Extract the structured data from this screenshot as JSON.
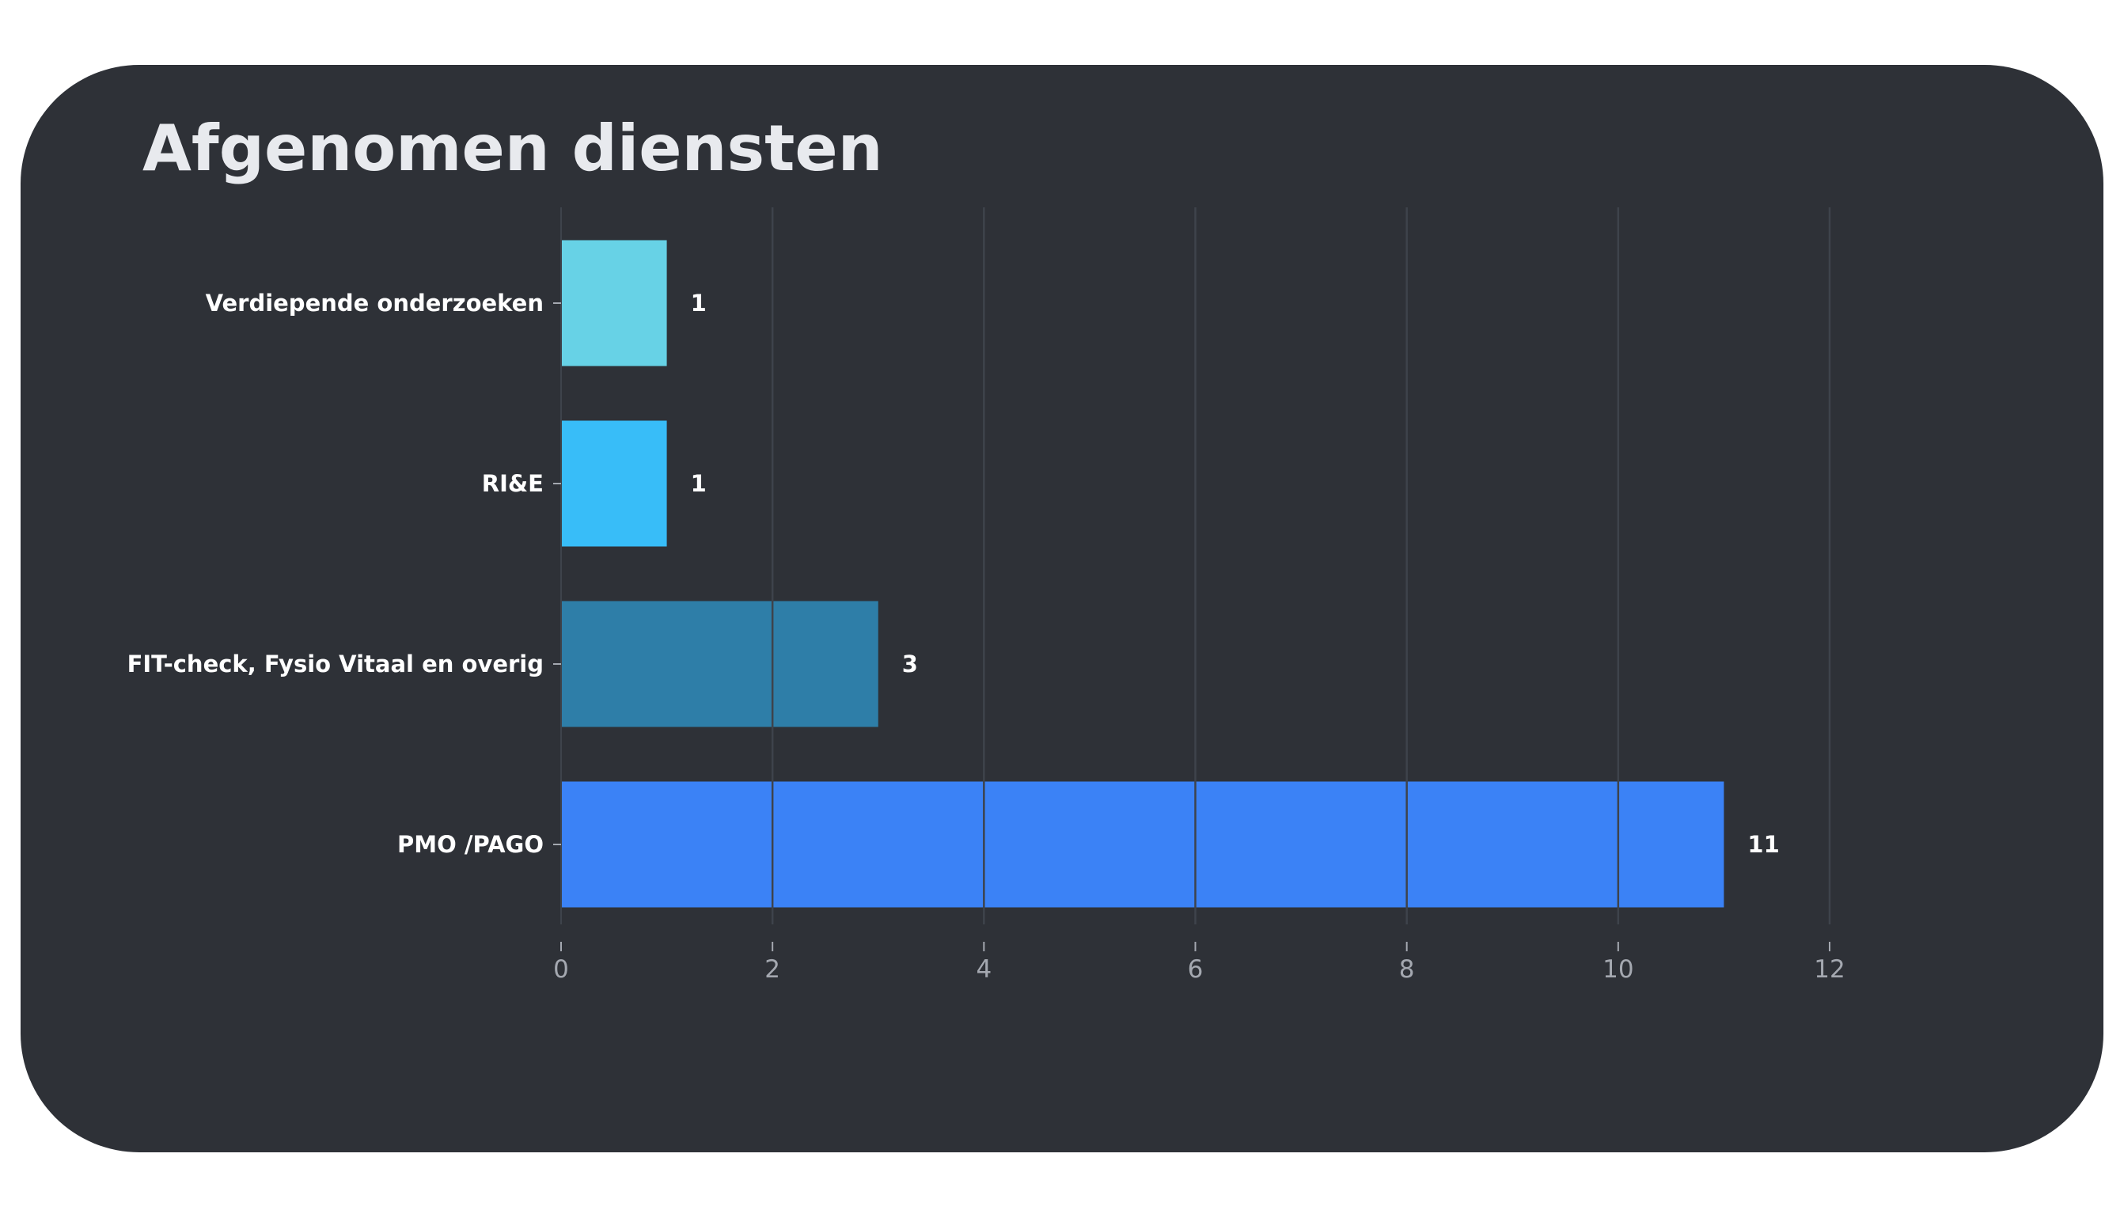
{
  "chart_data": {
    "type": "bar",
    "orientation": "horizontal",
    "title": "Afgenomen diensten",
    "xlabel": "",
    "ylabel": "",
    "xlim": [
      0,
      12
    ],
    "xticks": [
      0,
      2,
      4,
      6,
      8,
      10,
      12
    ],
    "grid": true,
    "categories": [
      "Verdiepende onderzoeken",
      "RI&E",
      "FIT-check, Fysio Vitaal en overig",
      "PMO /PAGO"
    ],
    "values": [
      1,
      1,
      3,
      11
    ],
    "data_labels": [
      "1",
      "1",
      "3",
      "11"
    ],
    "colors": [
      "#67d2e6",
      "#38bdf8",
      "#2e7ea8",
      "#3b82f6"
    ]
  },
  "theme": {
    "card_background": "#2e3137",
    "title_color": "#e8eaee",
    "label_color": "#ffffff",
    "tick_color": "#a4a8b0",
    "grid_color": "#3e434b"
  }
}
